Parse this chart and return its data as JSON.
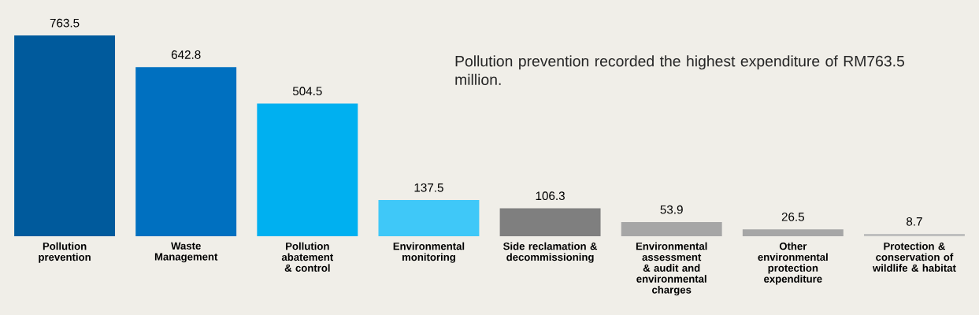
{
  "chart_data": {
    "type": "bar",
    "categories": [
      "Pollution prevention",
      "Waste Management",
      "Pollution abatement & control",
      "Environmental monitoring",
      "Side reclamation & decommissioning",
      "Environmental assessment & audit and environmental charges",
      "Other environmental protection expenditure",
      "Protection & conservation of wildlife & habitat"
    ],
    "values": [
      763.5,
      642.8,
      504.5,
      137.5,
      106.3,
      53.9,
      26.5,
      8.7
    ],
    "colors": [
      "#005a9c",
      "#0070c0",
      "#00b0f0",
      "#3fc8f8",
      "#7f7f7f",
      "#a6a6a6",
      "#a6a6a6",
      "#bfbfbf"
    ],
    "data_labels": true,
    "annotations": [
      "Pollution prevention recorded the highest expenditure of RM763.5 million."
    ]
  }
}
